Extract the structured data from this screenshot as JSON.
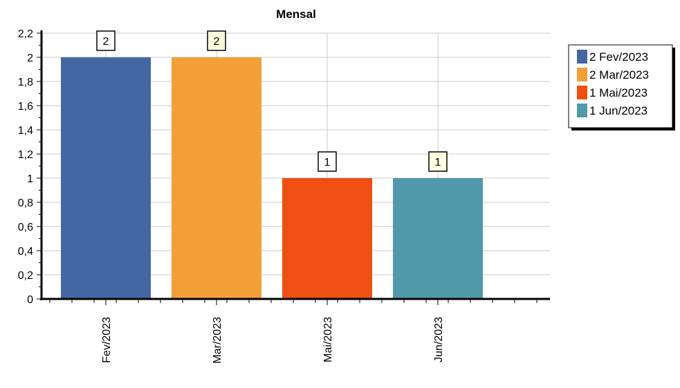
{
  "chart_data": {
    "type": "bar",
    "title": "Mensal",
    "categories": [
      "Fev/2023",
      "Mar/2023",
      "Mai/2023",
      "Jun/2023"
    ],
    "values": [
      2,
      2,
      1,
      1
    ],
    "data_labels": [
      "2",
      "2",
      "1",
      "1"
    ],
    "colors": [
      "#4466a3",
      "#f39f37",
      "#f04f14",
      "#4f99aa"
    ],
    "ylim": [
      0,
      2.2
    ],
    "yticks": [
      "0",
      "0,2",
      "0,4",
      "0,6",
      "0,8",
      "1",
      "1,2",
      "1,4",
      "1,6",
      "1,8",
      "2",
      "2,2"
    ],
    "grid": true,
    "legend_position": "top-right",
    "legend": [
      "2 Fev/2023",
      "2 Mar/2023",
      "1 Mai/2023",
      "1 Jun/2023"
    ]
  }
}
